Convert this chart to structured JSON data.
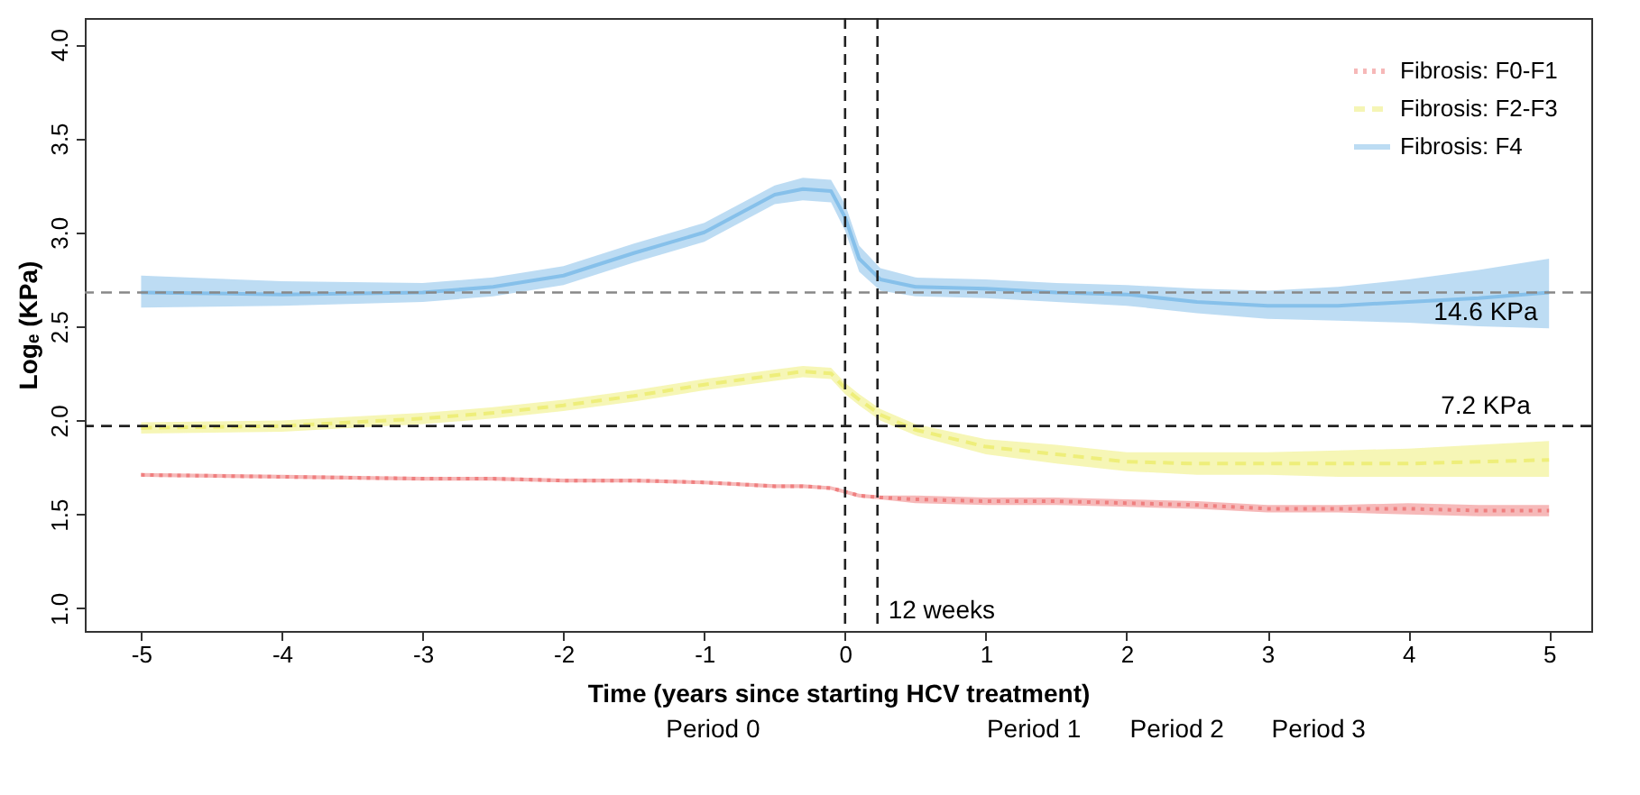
{
  "chart_data": {
    "type": "line",
    "xlabel": "Time (years since starting HCV treatment)",
    "ylabel": "Logₑ (KPa)",
    "x": [
      -5,
      -4,
      -3,
      -2.5,
      -2,
      -1.5,
      -1,
      -0.5,
      -0.3,
      -0.1,
      0,
      0.1,
      0.25,
      0.5,
      1,
      1.5,
      2,
      2.5,
      3,
      3.5,
      4,
      4.5,
      5
    ],
    "series": [
      {
        "name": "Fibrosis: F0-F1",
        "color": "#ef7f7f",
        "line_style": "dotted",
        "values": [
          1.71,
          1.7,
          1.69,
          1.69,
          1.68,
          1.68,
          1.67,
          1.65,
          1.65,
          1.64,
          1.62,
          1.6,
          1.59,
          1.58,
          1.57,
          1.57,
          1.56,
          1.55,
          1.53,
          1.53,
          1.53,
          1.52,
          1.52
        ],
        "lower": [
          1.7,
          1.69,
          1.68,
          1.68,
          1.67,
          1.67,
          1.66,
          1.64,
          1.64,
          1.63,
          1.61,
          1.59,
          1.58,
          1.56,
          1.55,
          1.55,
          1.54,
          1.53,
          1.51,
          1.51,
          1.5,
          1.49,
          1.49
        ],
        "upper": [
          1.72,
          1.71,
          1.7,
          1.7,
          1.69,
          1.69,
          1.68,
          1.66,
          1.66,
          1.65,
          1.63,
          1.61,
          1.6,
          1.6,
          1.59,
          1.59,
          1.58,
          1.57,
          1.55,
          1.55,
          1.56,
          1.55,
          1.55
        ]
      },
      {
        "name": "Fibrosis: F2-F3",
        "color": "#eeee7a",
        "line_style": "dashed",
        "values": [
          1.96,
          1.97,
          2.01,
          2.04,
          2.08,
          2.13,
          2.19,
          2.24,
          2.26,
          2.25,
          2.17,
          2.11,
          2.03,
          1.95,
          1.86,
          1.82,
          1.78,
          1.77,
          1.77,
          1.77,
          1.77,
          1.78,
          1.79
        ],
        "lower": [
          1.93,
          1.94,
          1.98,
          2.01,
          2.05,
          2.1,
          2.16,
          2.21,
          2.23,
          2.22,
          2.14,
          2.08,
          2.0,
          1.92,
          1.82,
          1.77,
          1.73,
          1.71,
          1.71,
          1.7,
          1.7,
          1.7,
          1.7
        ],
        "upper": [
          1.99,
          2.0,
          2.04,
          2.07,
          2.11,
          2.16,
          2.22,
          2.27,
          2.29,
          2.28,
          2.2,
          2.14,
          2.06,
          1.98,
          1.9,
          1.87,
          1.83,
          1.83,
          1.83,
          1.84,
          1.85,
          1.87,
          1.89
        ]
      },
      {
        "name": "Fibrosis: F4",
        "color": "#86c0ea",
        "line_style": "solid",
        "values": [
          2.68,
          2.67,
          2.68,
          2.71,
          2.77,
          2.89,
          3.0,
          3.2,
          3.23,
          3.22,
          3.08,
          2.86,
          2.75,
          2.71,
          2.7,
          2.68,
          2.67,
          2.63,
          2.61,
          2.61,
          2.63,
          2.65,
          2.68
        ],
        "lower": [
          2.6,
          2.61,
          2.63,
          2.66,
          2.72,
          2.84,
          2.95,
          3.15,
          3.17,
          3.16,
          3.01,
          2.79,
          2.69,
          2.66,
          2.65,
          2.63,
          2.61,
          2.57,
          2.54,
          2.53,
          2.52,
          2.5,
          2.49
        ],
        "upper": [
          2.77,
          2.74,
          2.73,
          2.76,
          2.82,
          2.94,
          3.05,
          3.25,
          3.29,
          3.28,
          3.15,
          2.93,
          2.81,
          2.76,
          2.75,
          2.73,
          2.72,
          2.7,
          2.69,
          2.71,
          2.75,
          2.8,
          2.86
        ]
      }
    ],
    "xlim": [
      -5.4,
      5.3
    ],
    "xticks": [
      -5,
      -4,
      -3,
      -2,
      -1,
      0,
      1,
      2,
      3,
      4,
      5
    ],
    "ylim": [
      0.88,
      4.14
    ],
    "yticks": [
      {
        "value": 1,
        "label": "1.0"
      },
      {
        "value": 1.5,
        "label": "1.5"
      },
      {
        "value": 2,
        "label": "2.0"
      },
      {
        "value": 2.5,
        "label": "2.5"
      },
      {
        "value": 3,
        "label": "3.0"
      },
      {
        "value": 3.5,
        "label": "3.5"
      },
      {
        "value": 4,
        "label": "4.0"
      }
    ],
    "ref_lines": [
      {
        "axis": "y",
        "value": 2.68,
        "label": "14.6 KPa",
        "color": "#888888",
        "line_style": "dashed"
      },
      {
        "axis": "y",
        "value": 1.97,
        "label": "7.2 KPa",
        "color": "#222222",
        "line_style": "dashed"
      },
      {
        "axis": "x",
        "value": 0,
        "color": "#222222",
        "line_style": "dashed"
      },
      {
        "axis": "x",
        "value": 0.23,
        "label": "12 weeks",
        "color": "#222222",
        "line_style": "dashed"
      }
    ],
    "annotations": [
      "Period 0",
      "Period 1",
      "Period 2",
      "Period 3"
    ],
    "grid": false,
    "legend": "top right"
  }
}
